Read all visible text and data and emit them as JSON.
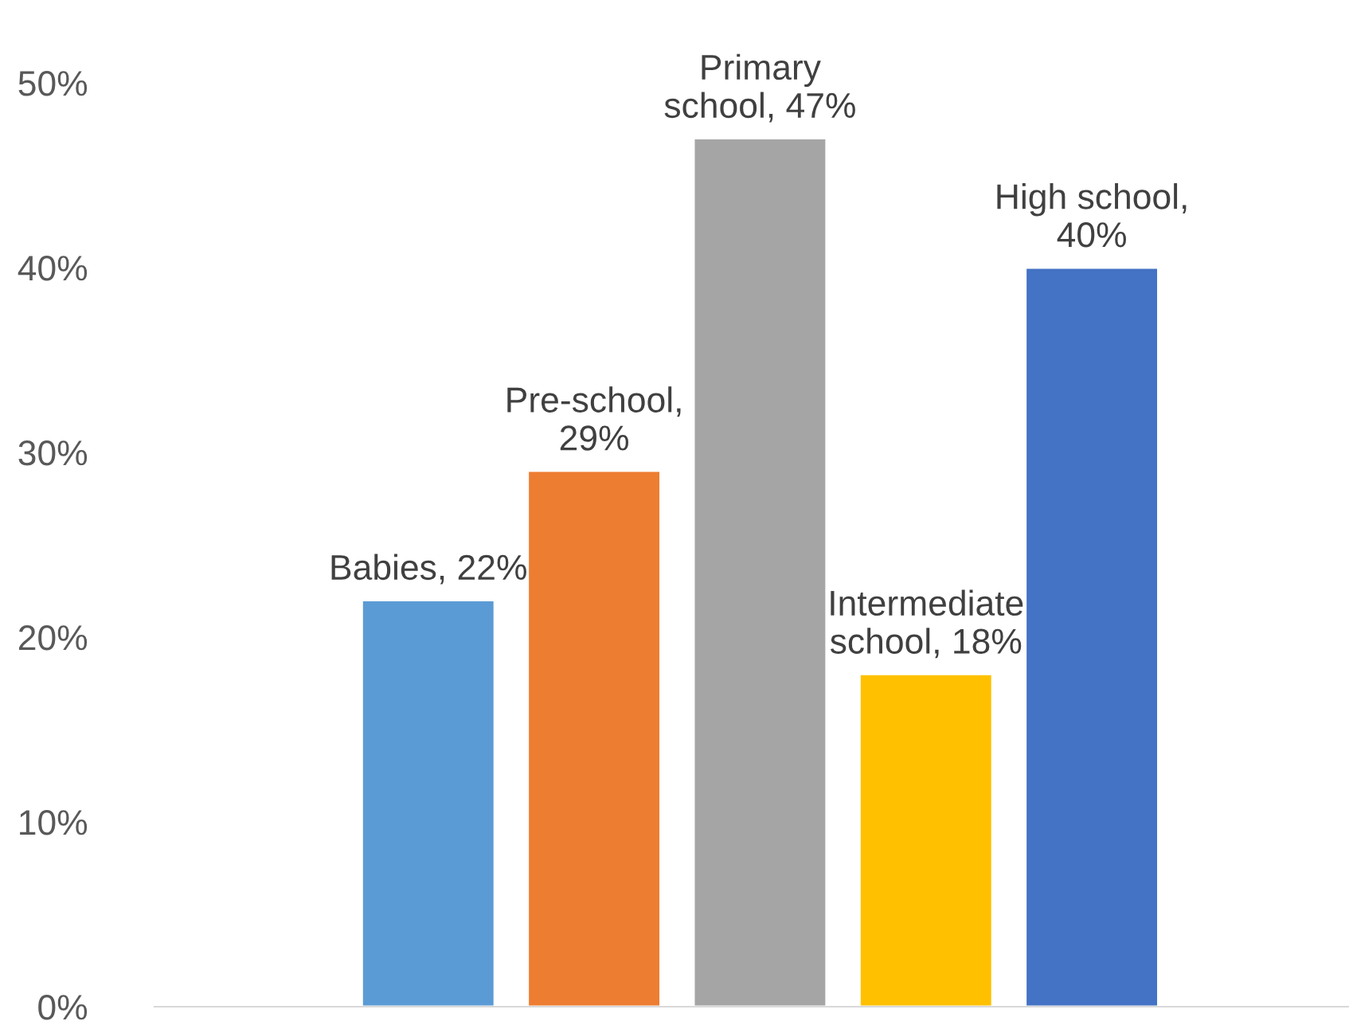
{
  "chart_data": {
    "type": "bar",
    "categories": [
      null,
      null,
      null,
      null,
      null
    ],
    "values": [
      22,
      29,
      47,
      18,
      40
    ],
    "colors": [
      "#5b9bd5",
      "#ed7d31",
      "#a5a5a5",
      "#ffc000",
      "#4472c4"
    ],
    "value_labels": [
      "Babies, 22%",
      "Pre-school, 29%",
      "Primary school, 47%",
      "Intermediate school, 18%",
      "High school, 40%"
    ],
    "ylim": [
      0,
      50
    ],
    "yticks": [
      {
        "value": 0,
        "label": "0%"
      },
      {
        "value": 10,
        "label": "10%"
      },
      {
        "value": 20,
        "label": "20%"
      },
      {
        "value": 30,
        "label": "30%"
      },
      {
        "value": 40,
        "label": "40%"
      },
      {
        "value": 50,
        "label": "50%"
      }
    ],
    "grid": false,
    "legend": false
  }
}
